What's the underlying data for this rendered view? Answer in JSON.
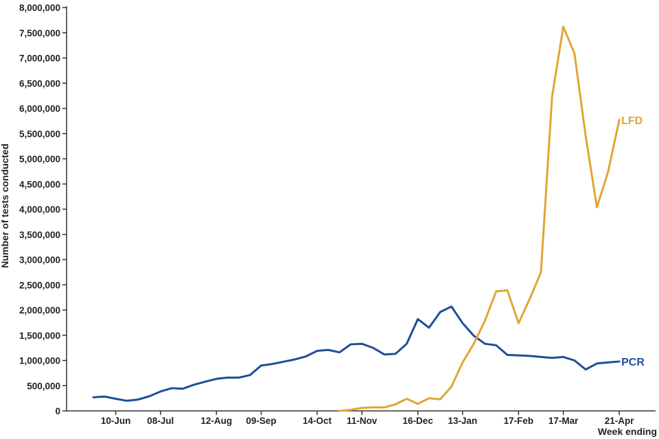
{
  "chart_data": {
    "type": "line",
    "title": "",
    "xlabel": "Week ending",
    "ylabel": "Number of tests conducted",
    "ylim": [
      0,
      8000000
    ],
    "y_ticks": [
      0,
      500000,
      1000000,
      1500000,
      2000000,
      2500000,
      3000000,
      3500000,
      4000000,
      4500000,
      5000000,
      5500000,
      6000000,
      6500000,
      7000000,
      7500000,
      8000000
    ],
    "y_tick_labels": [
      "0",
      "500,000",
      "1,000,000",
      "1,500,000",
      "2,000,000",
      "2,500,000",
      "3,000,000",
      "3,500,000",
      "4,000,000",
      "4,500,000",
      "5,000,000",
      "5,500,000",
      "6,000,000",
      "6,500,000",
      "7,000,000",
      "7,500,000",
      "8,000,000"
    ],
    "x_tick_labels": [
      "10-Jun",
      "08-Jul",
      "12-Aug",
      "09-Sep",
      "14-Oct",
      "11-Nov",
      "16-Dec",
      "13-Jan",
      "17-Feb",
      "17-Mar",
      "21-Apr"
    ],
    "x_tick_week_index": [
      2,
      6,
      11,
      15,
      20,
      24,
      29,
      33,
      38,
      42,
      47
    ],
    "grid": false,
    "x": [
      "2020-05-27",
      "2020-06-03",
      "2020-06-10",
      "2020-06-17",
      "2020-06-24",
      "2020-07-01",
      "2020-07-08",
      "2020-07-15",
      "2020-07-22",
      "2020-07-29",
      "2020-08-05",
      "2020-08-12",
      "2020-08-19",
      "2020-08-26",
      "2020-09-02",
      "2020-09-09",
      "2020-09-16",
      "2020-09-23",
      "2020-09-30",
      "2020-10-07",
      "2020-10-14",
      "2020-10-21",
      "2020-10-28",
      "2020-11-04",
      "2020-11-11",
      "2020-11-18",
      "2020-11-25",
      "2020-12-02",
      "2020-12-09",
      "2020-12-16",
      "2020-12-23",
      "2020-12-30",
      "2021-01-06",
      "2021-01-13",
      "2021-01-20",
      "2021-01-27",
      "2021-02-03",
      "2021-02-10",
      "2021-02-17",
      "2021-02-24",
      "2021-03-03",
      "2021-03-10",
      "2021-03-17",
      "2021-03-24",
      "2021-03-31",
      "2021-04-07",
      "2021-04-14",
      "2021-04-21"
    ],
    "series": [
      {
        "name": "PCR",
        "color": "#1f4e9a",
        "values": [
          270000,
          285000,
          240000,
          200000,
          225000,
          290000,
          385000,
          450000,
          440000,
          520000,
          580000,
          635000,
          660000,
          660000,
          710000,
          900000,
          930000,
          975000,
          1020000,
          1080000,
          1190000,
          1210000,
          1160000,
          1320000,
          1330000,
          1250000,
          1120000,
          1130000,
          1330000,
          1820000,
          1650000,
          1960000,
          2070000,
          1740000,
          1490000,
          1330000,
          1300000,
          1110000,
          1100000,
          1090000,
          1070000,
          1050000,
          1070000,
          1000000,
          820000,
          940000,
          960000,
          980000
        ]
      },
      {
        "name": "LFD",
        "color": "#e1a533",
        "values": [
          null,
          null,
          null,
          null,
          null,
          null,
          null,
          null,
          null,
          null,
          null,
          null,
          null,
          null,
          null,
          null,
          null,
          null,
          null,
          null,
          null,
          null,
          0,
          20000,
          60000,
          70000,
          70000,
          130000,
          240000,
          140000,
          250000,
          230000,
          480000,
          960000,
          1330000,
          1790000,
          2370000,
          2390000,
          1740000,
          2220000,
          2750000,
          6240000,
          7620000,
          7090000,
          5450000,
          4040000,
          4740000,
          5770000
        ]
      }
    ]
  }
}
